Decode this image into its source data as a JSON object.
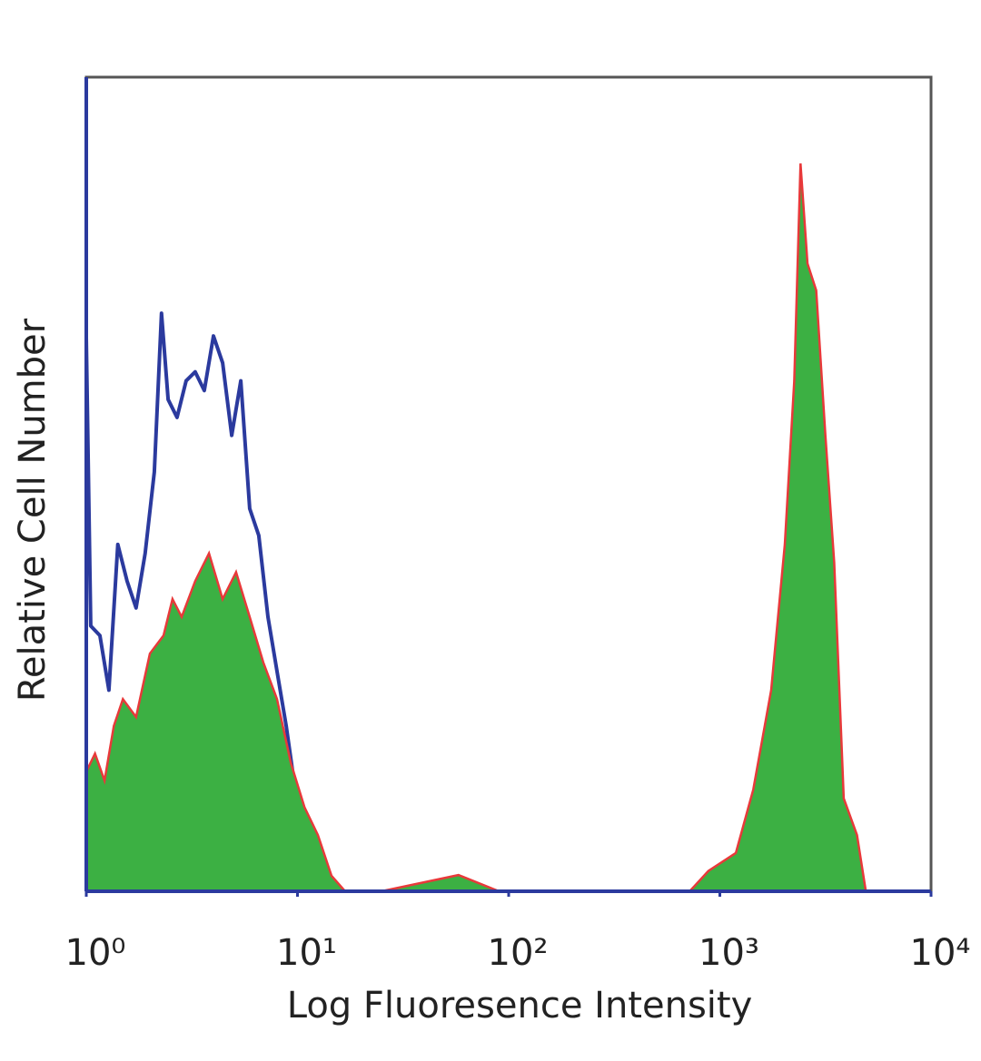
{
  "chart_data": {
    "type": "histogram-overlay",
    "xlabel": "Log Fluoresence Intensity",
    "ylabel": "Relative Cell Number",
    "xscale": "log",
    "xlim": [
      1,
      10000
    ],
    "xticks": [
      {
        "value": 1,
        "label": "10⁰"
      },
      {
        "value": 10,
        "label": "10¹"
      },
      {
        "value": 100,
        "label": "10²"
      },
      {
        "value": 1000,
        "label": "10³"
      },
      {
        "value": 10000,
        "label": "10⁴"
      }
    ],
    "ylim": [
      0,
      100
    ],
    "series": [
      {
        "kind": "line",
        "color": "#2b3a9e",
        "x": [
          1,
          1.05,
          1.16,
          1.28,
          1.41,
          1.56,
          1.72,
          1.9,
          2.1,
          2.27,
          2.44,
          2.69,
          2.97,
          3.28,
          3.62,
          4.0,
          4.42,
          4.88,
          5.39,
          5.94,
          6.56,
          7.25,
          8.0,
          8.84,
          9.76,
          10.8,
          11.9,
          13.8
        ],
        "values": [
          68,
          32.6,
          31.4,
          24.7,
          42.6,
          38.1,
          34.8,
          41.5,
          51.5,
          71.0,
          60.4,
          58.2,
          62.7,
          63.8,
          61.5,
          68.2,
          64.9,
          56.0,
          62.7,
          47.0,
          43.7,
          33.7,
          27.0,
          20.3,
          12.5,
          5.8,
          0.8,
          0
        ]
      },
      {
        "kind": "area",
        "color": "#3cb043",
        "edge_color": "#e8393a",
        "x": [
          1,
          1.1,
          1.22,
          1.35,
          1.49,
          1.72,
          2.0,
          2.32,
          2.56,
          2.83,
          3.28,
          3.81,
          4.42,
          5.12,
          5.94,
          6.89,
          8.0,
          9.29,
          10.8,
          12.5,
          14.5,
          16.8,
          25,
          57.9,
          90,
          720,
          883,
          1190,
          1440,
          1750,
          2030,
          2250,
          2410,
          2600,
          2860,
          3160,
          3480,
          3860,
          4460,
          4910
        ],
        "values": [
          14.7,
          16.9,
          13.6,
          20.3,
          23.6,
          21.4,
          29.2,
          31.4,
          35.9,
          33.7,
          38.1,
          41.5,
          35.9,
          39.2,
          33.7,
          28.1,
          23.6,
          15.8,
          10.3,
          6.9,
          1.9,
          0,
          0,
          2,
          0,
          0,
          2.5,
          4.7,
          12.5,
          24.7,
          42.6,
          62.7,
          89.4,
          77.1,
          73.8,
          56.0,
          40.4,
          11.4,
          6.9,
          0
        ]
      }
    ]
  }
}
